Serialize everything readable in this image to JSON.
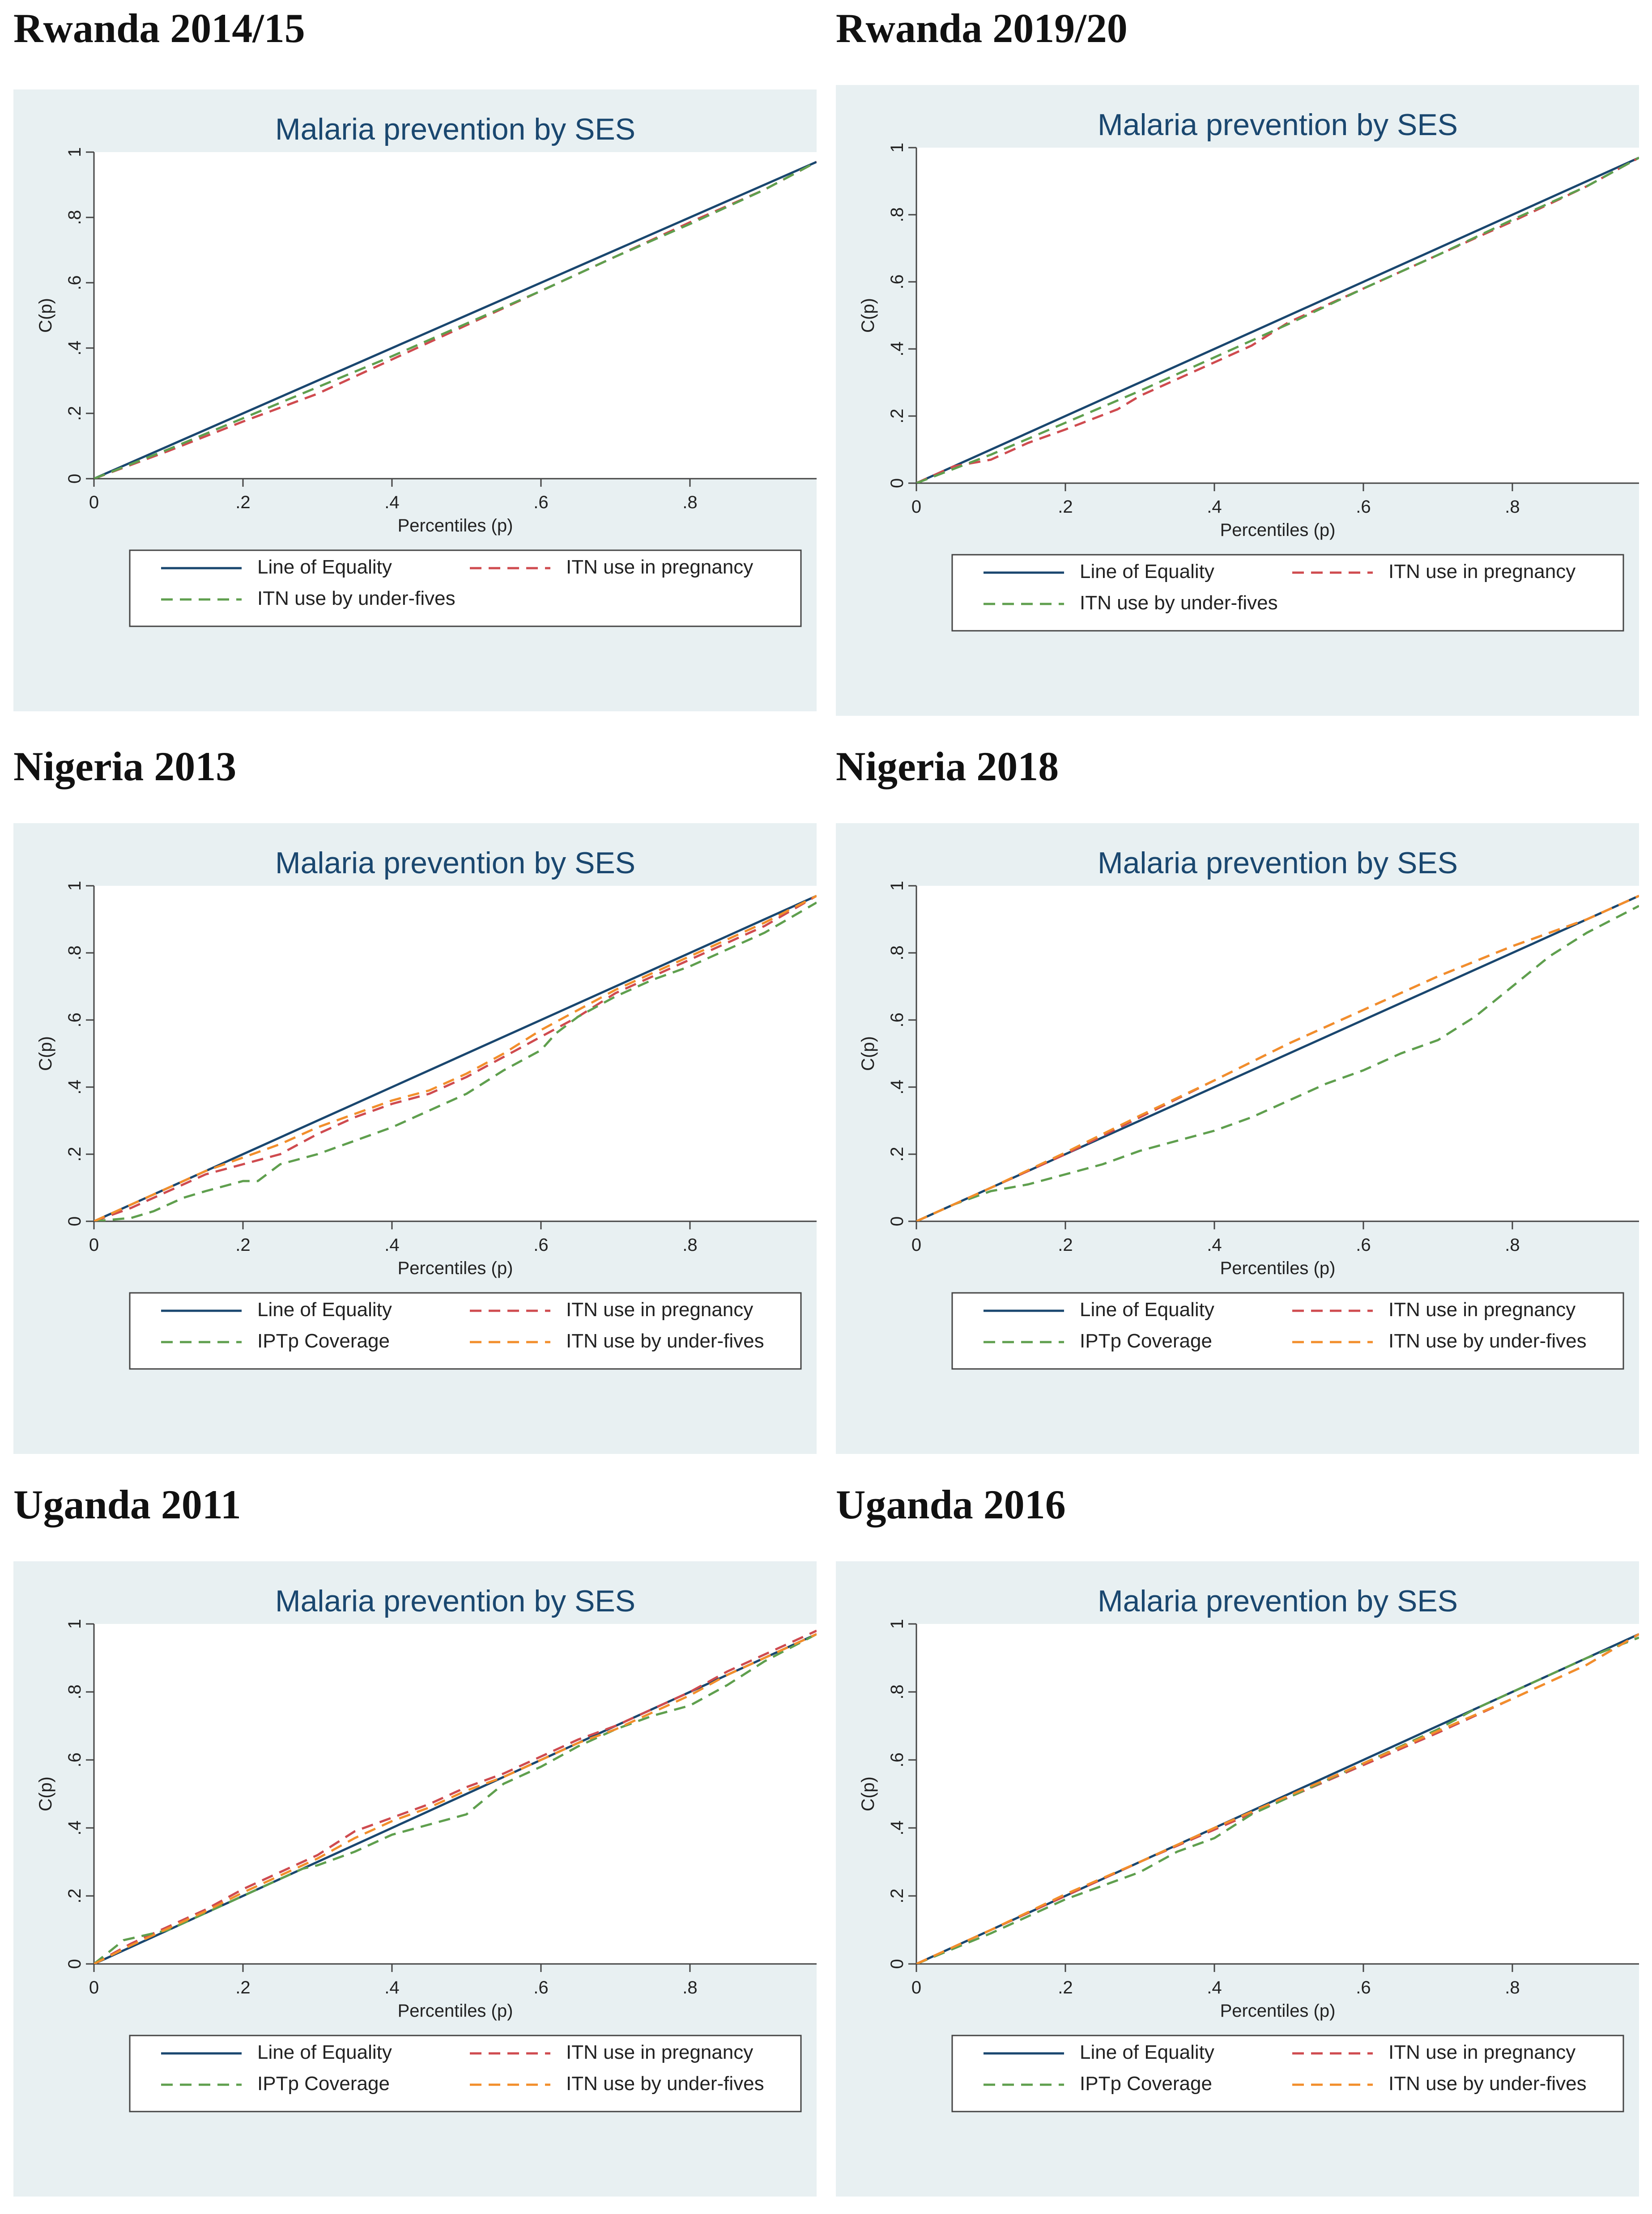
{
  "chart_data": [
    {
      "type": "line",
      "heading": "Rwanda 2014/15",
      "title": "Malaria prevention by SES",
      "xlabel": "Percentiles (p)",
      "ylabel": "C(p)",
      "xlim": [
        0,
        0.97
      ],
      "ylim": [
        0,
        1
      ],
      "xticks": [
        "0",
        ".2",
        ".4",
        ".6",
        ".8"
      ],
      "yticks": [
        "0",
        ".2",
        ".4",
        ".6",
        ".8",
        "1"
      ],
      "legend": [
        "Line of Equality",
        "ITN use in pregnancy",
        "ITN use by under-fives"
      ],
      "series": [
        {
          "name": "Line of Equality",
          "color": "#1a476f",
          "style": "solid",
          "x": [
            0,
            0.97
          ],
          "y": [
            0,
            0.97
          ]
        },
        {
          "name": "ITN use in pregnancy",
          "color": "#cf4b4f",
          "style": "dash",
          "x": [
            0,
            0.1,
            0.2,
            0.3,
            0.4,
            0.5,
            0.6,
            0.7,
            0.8,
            0.9,
            0.97
          ],
          "y": [
            0,
            0.085,
            0.175,
            0.26,
            0.365,
            0.47,
            0.575,
            0.68,
            0.785,
            0.885,
            0.97
          ]
        },
        {
          "name": "ITN use by under-fives",
          "color": "#5f9f4e",
          "style": "dash",
          "x": [
            0,
            0.1,
            0.2,
            0.3,
            0.4,
            0.5,
            0.6,
            0.7,
            0.8,
            0.9,
            0.97
          ],
          "y": [
            0,
            0.09,
            0.185,
            0.28,
            0.375,
            0.475,
            0.575,
            0.68,
            0.78,
            0.885,
            0.97
          ]
        }
      ]
    },
    {
      "type": "line",
      "heading": "Rwanda 2019/20",
      "title": "Malaria prevention by SES",
      "xlabel": "Percentiles (p)",
      "ylabel": "C(p)",
      "xlim": [
        0,
        0.97
      ],
      "ylim": [
        0,
        1
      ],
      "xticks": [
        "0",
        ".2",
        ".4",
        ".6",
        ".8"
      ],
      "yticks": [
        "0",
        ".2",
        ".4",
        ".6",
        ".8",
        "1"
      ],
      "legend": [
        "Line of Equality",
        "ITN use in pregnancy",
        "ITN use by under-fives"
      ],
      "series": [
        {
          "name": "Line of Equality",
          "color": "#1a476f",
          "style": "solid",
          "x": [
            0,
            0.97
          ],
          "y": [
            0,
            0.97
          ]
        },
        {
          "name": "ITN use in pregnancy",
          "color": "#cf4b4f",
          "style": "dash",
          "x": [
            0,
            0.05,
            0.1,
            0.15,
            0.2,
            0.27,
            0.3,
            0.4,
            0.45,
            0.5,
            0.6,
            0.7,
            0.8,
            0.9,
            0.97
          ],
          "y": [
            0,
            0.05,
            0.07,
            0.12,
            0.16,
            0.22,
            0.26,
            0.36,
            0.41,
            0.48,
            0.58,
            0.68,
            0.78,
            0.885,
            0.97
          ]
        },
        {
          "name": "ITN use by under-fives",
          "color": "#5f9f4e",
          "style": "dash",
          "x": [
            0,
            0.1,
            0.2,
            0.3,
            0.4,
            0.5,
            0.6,
            0.7,
            0.8,
            0.9,
            0.97
          ],
          "y": [
            0,
            0.085,
            0.18,
            0.275,
            0.375,
            0.475,
            0.58,
            0.68,
            0.785,
            0.885,
            0.97
          ]
        }
      ]
    },
    {
      "type": "line",
      "heading": "Nigeria 2013",
      "title": "Malaria prevention by SES",
      "xlabel": "Percentiles (p)",
      "ylabel": "C(p)",
      "xlim": [
        0,
        0.97
      ],
      "ylim": [
        0,
        1
      ],
      "xticks": [
        "0",
        ".2",
        ".4",
        ".6",
        ".8"
      ],
      "yticks": [
        "0",
        ".2",
        ".4",
        ".6",
        ".8",
        "1"
      ],
      "legend": [
        "Line of Equality",
        "ITN use in pregnancy",
        "IPTp Coverage",
        "ITN use by under-fives"
      ],
      "series": [
        {
          "name": "Line of Equality",
          "color": "#1a476f",
          "style": "solid",
          "x": [
            0,
            0.97
          ],
          "y": [
            0,
            0.97
          ]
        },
        {
          "name": "ITN use in pregnancy",
          "color": "#cf4b4f",
          "style": "dash",
          "x": [
            0,
            0.05,
            0.1,
            0.15,
            0.2,
            0.25,
            0.3,
            0.35,
            0.4,
            0.45,
            0.5,
            0.55,
            0.6,
            0.65,
            0.7,
            0.75,
            0.8,
            0.85,
            0.9,
            0.97
          ],
          "y": [
            0,
            0.04,
            0.09,
            0.14,
            0.17,
            0.2,
            0.26,
            0.31,
            0.35,
            0.38,
            0.43,
            0.49,
            0.55,
            0.61,
            0.68,
            0.73,
            0.78,
            0.83,
            0.88,
            0.97
          ]
        },
        {
          "name": "IPTp Coverage",
          "color": "#5f9f4e",
          "style": "dash",
          "x": [
            0,
            0.05,
            0.08,
            0.12,
            0.15,
            0.2,
            0.22,
            0.25,
            0.3,
            0.35,
            0.4,
            0.45,
            0.5,
            0.55,
            0.6,
            0.62,
            0.65,
            0.7,
            0.75,
            0.8,
            0.85,
            0.9,
            0.97
          ],
          "y": [
            0,
            0.01,
            0.03,
            0.07,
            0.09,
            0.12,
            0.12,
            0.17,
            0.2,
            0.24,
            0.28,
            0.33,
            0.38,
            0.45,
            0.51,
            0.56,
            0.61,
            0.67,
            0.72,
            0.76,
            0.81,
            0.86,
            0.95
          ]
        },
        {
          "name": "ITN use by under-fives",
          "color": "#f28e2b",
          "style": "dash",
          "x": [
            0,
            0.05,
            0.1,
            0.15,
            0.2,
            0.25,
            0.3,
            0.35,
            0.4,
            0.45,
            0.5,
            0.55,
            0.6,
            0.65,
            0.7,
            0.75,
            0.8,
            0.85,
            0.9,
            0.97
          ],
          "y": [
            0,
            0.05,
            0.1,
            0.15,
            0.19,
            0.23,
            0.28,
            0.32,
            0.36,
            0.39,
            0.44,
            0.5,
            0.57,
            0.63,
            0.69,
            0.74,
            0.79,
            0.84,
            0.89,
            0.97
          ]
        }
      ]
    },
    {
      "type": "line",
      "heading": "Nigeria 2018",
      "title": "Malaria prevention by SES",
      "xlabel": "Percentiles (p)",
      "ylabel": "C(p)",
      "xlim": [
        0,
        0.97
      ],
      "ylim": [
        0,
        1
      ],
      "xticks": [
        "0",
        ".2",
        ".4",
        ".6",
        ".8"
      ],
      "yticks": [
        "0",
        ".2",
        ".4",
        ".6",
        ".8",
        "1"
      ],
      "legend": [
        "Line of Equality",
        "ITN use in pregnancy",
        "IPTp Coverage",
        "ITN use by under-fives"
      ],
      "series": [
        {
          "name": "Line of Equality",
          "color": "#1a476f",
          "style": "solid",
          "x": [
            0,
            0.97
          ],
          "y": [
            0,
            0.97
          ]
        },
        {
          "name": "ITN use in pregnancy",
          "color": "#cf4b4f",
          "style": "dash",
          "x": [
            0,
            0.1,
            0.2,
            0.3,
            0.4,
            0.5,
            0.6,
            0.7,
            0.8,
            0.9,
            0.97
          ],
          "y": [
            0,
            0.1,
            0.2,
            0.31,
            0.42,
            0.53,
            0.63,
            0.73,
            0.82,
            0.9,
            0.97
          ]
        },
        {
          "name": "IPTp Coverage",
          "color": "#5f9f4e",
          "style": "dash",
          "x": [
            0,
            0.05,
            0.1,
            0.15,
            0.2,
            0.25,
            0.3,
            0.35,
            0.4,
            0.45,
            0.5,
            0.55,
            0.6,
            0.65,
            0.7,
            0.75,
            0.8,
            0.85,
            0.9,
            0.97
          ],
          "y": [
            0,
            0.05,
            0.09,
            0.11,
            0.14,
            0.17,
            0.21,
            0.24,
            0.27,
            0.31,
            0.36,
            0.41,
            0.45,
            0.5,
            0.54,
            0.61,
            0.7,
            0.79,
            0.86,
            0.94
          ]
        },
        {
          "name": "ITN use by under-fives",
          "color": "#f28e2b",
          "style": "dash",
          "x": [
            0,
            0.1,
            0.2,
            0.3,
            0.4,
            0.5,
            0.6,
            0.7,
            0.8,
            0.9,
            0.97
          ],
          "y": [
            0,
            0.1,
            0.205,
            0.315,
            0.42,
            0.53,
            0.63,
            0.73,
            0.82,
            0.9,
            0.97
          ]
        }
      ]
    },
    {
      "type": "line",
      "heading": "Uganda 2011",
      "title": "Malaria prevention by SES",
      "xlabel": "Percentiles (p)",
      "ylabel": "C(p)",
      "xlim": [
        0,
        0.97
      ],
      "ylim": [
        0,
        1
      ],
      "xticks": [
        "0",
        ".2",
        ".4",
        ".6",
        ".8"
      ],
      "yticks": [
        "0",
        ".2",
        ".4",
        ".6",
        ".8",
        "1"
      ],
      "legend": [
        "Line of Equality",
        "ITN use in pregnancy",
        "IPTp Coverage",
        "ITN use by under-fives"
      ],
      "series": [
        {
          "name": "Line of Equality",
          "color": "#1a476f",
          "style": "solid",
          "x": [
            0,
            0.97
          ],
          "y": [
            0,
            0.97
          ]
        },
        {
          "name": "ITN use in pregnancy",
          "color": "#cf4b4f",
          "style": "dash",
          "x": [
            0,
            0.05,
            0.1,
            0.15,
            0.2,
            0.25,
            0.3,
            0.35,
            0.4,
            0.45,
            0.5,
            0.55,
            0.6,
            0.65,
            0.7,
            0.75,
            0.8,
            0.85,
            0.9,
            0.97
          ],
          "y": [
            0,
            0.06,
            0.11,
            0.16,
            0.22,
            0.27,
            0.32,
            0.39,
            0.43,
            0.47,
            0.52,
            0.56,
            0.61,
            0.66,
            0.7,
            0.75,
            0.8,
            0.86,
            0.91,
            0.98
          ]
        },
        {
          "name": "IPTp Coverage",
          "color": "#5f9f4e",
          "style": "dash",
          "x": [
            0,
            0.04,
            0.1,
            0.15,
            0.2,
            0.25,
            0.28,
            0.3,
            0.35,
            0.4,
            0.45,
            0.5,
            0.55,
            0.6,
            0.65,
            0.7,
            0.75,
            0.8,
            0.85,
            0.9,
            0.97
          ],
          "y": [
            0,
            0.07,
            0.1,
            0.15,
            0.2,
            0.25,
            0.28,
            0.29,
            0.33,
            0.38,
            0.41,
            0.44,
            0.53,
            0.58,
            0.64,
            0.69,
            0.73,
            0.76,
            0.82,
            0.89,
            0.97
          ]
        },
        {
          "name": "ITN use by under-fives",
          "color": "#f28e2b",
          "style": "dash",
          "x": [
            0,
            0.05,
            0.1,
            0.15,
            0.2,
            0.25,
            0.3,
            0.35,
            0.4,
            0.45,
            0.5,
            0.55,
            0.6,
            0.65,
            0.7,
            0.75,
            0.8,
            0.85,
            0.9,
            0.97
          ],
          "y": [
            0,
            0.055,
            0.105,
            0.155,
            0.21,
            0.26,
            0.31,
            0.37,
            0.42,
            0.46,
            0.51,
            0.55,
            0.6,
            0.65,
            0.69,
            0.74,
            0.79,
            0.85,
            0.9,
            0.97
          ]
        }
      ]
    },
    {
      "type": "line",
      "heading": "Uganda 2016",
      "title": "Malaria prevention by SES",
      "xlabel": "Percentiles (p)",
      "ylabel": "C(p)",
      "xlim": [
        0,
        0.97
      ],
      "ylim": [
        0,
        1
      ],
      "xticks": [
        "0",
        ".2",
        ".4",
        ".6",
        ".8"
      ],
      "yticks": [
        "0",
        ".2",
        ".4",
        ".6",
        ".8",
        "1"
      ],
      "legend": [
        "Line of Equality",
        "ITN use in pregnancy",
        "IPTp Coverage",
        "ITN use by under-fives"
      ],
      "series": [
        {
          "name": "Line of Equality",
          "color": "#1a476f",
          "style": "solid",
          "x": [
            0,
            0.97
          ],
          "y": [
            0,
            0.97
          ]
        },
        {
          "name": "ITN use in pregnancy",
          "color": "#cf4b4f",
          "style": "dash",
          "x": [
            0,
            0.1,
            0.2,
            0.3,
            0.4,
            0.5,
            0.6,
            0.7,
            0.8,
            0.9,
            0.97
          ],
          "y": [
            0,
            0.1,
            0.2,
            0.3,
            0.395,
            0.49,
            0.585,
            0.68,
            0.78,
            0.88,
            0.97
          ]
        },
        {
          "name": "IPTp Coverage",
          "color": "#5f9f4e",
          "style": "dash",
          "x": [
            0,
            0.05,
            0.1,
            0.15,
            0.2,
            0.25,
            0.3,
            0.35,
            0.4,
            0.45,
            0.5,
            0.55,
            0.6,
            0.65,
            0.7,
            0.75,
            0.8,
            0.85,
            0.9,
            0.97
          ],
          "y": [
            0,
            0.045,
            0.09,
            0.14,
            0.19,
            0.23,
            0.27,
            0.33,
            0.37,
            0.44,
            0.49,
            0.54,
            0.59,
            0.64,
            0.69,
            0.75,
            0.8,
            0.85,
            0.9,
            0.96
          ]
        },
        {
          "name": "ITN use by under-fives",
          "color": "#f28e2b",
          "style": "dash",
          "x": [
            0,
            0.1,
            0.2,
            0.3,
            0.4,
            0.5,
            0.6,
            0.7,
            0.8,
            0.9,
            0.97
          ],
          "y": [
            0,
            0.1,
            0.205,
            0.3,
            0.4,
            0.495,
            0.59,
            0.685,
            0.78,
            0.88,
            0.97
          ]
        }
      ]
    }
  ]
}
